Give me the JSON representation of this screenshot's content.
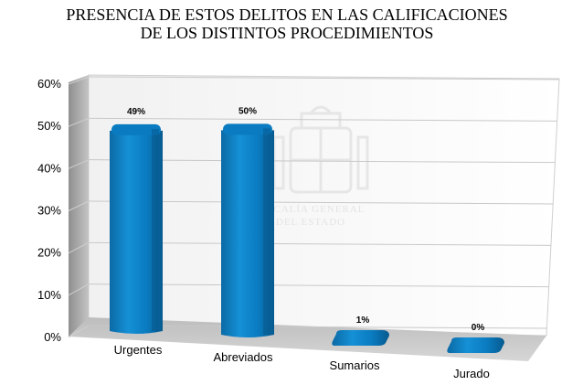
{
  "chart_data": {
    "type": "bar",
    "title_lines": [
      "PRESENCIA DE ESTOS DELITOS EN LAS CALIFICACIONES",
      "DE LOS DISTINTOS PROCEDIMIENTOS"
    ],
    "categories": [
      "Urgentes",
      "Abreviados",
      "Sumarios",
      "Jurado"
    ],
    "values": [
      49,
      50,
      1,
      0
    ],
    "value_labels": [
      "49%",
      "50%",
      "1%",
      "0%"
    ],
    "ylim": [
      0,
      60
    ],
    "yticks": [
      0,
      10,
      20,
      30,
      40,
      50,
      60
    ],
    "ytick_labels": [
      "0%",
      "10%",
      "20%",
      "30%",
      "40%",
      "50%",
      "60%"
    ],
    "grid": true,
    "legend": "none",
    "style": "3d-cylinder",
    "bar_color": "#0a7bc0"
  },
  "watermark": {
    "lines": [
      "FISCALÍA GENERAL",
      "DEL ESTADO"
    ]
  }
}
